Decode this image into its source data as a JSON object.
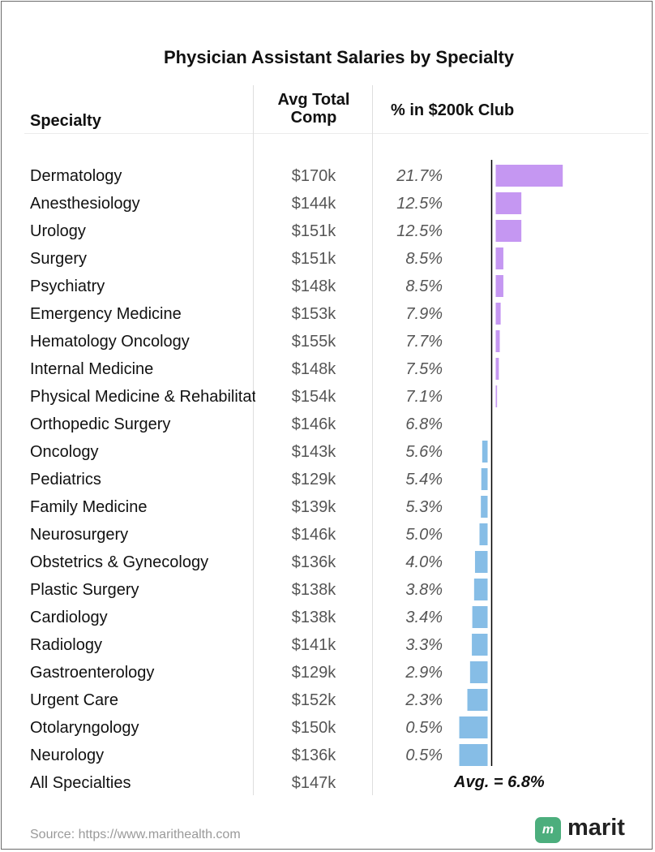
{
  "title": "Physician Assistant Salaries by Specialty",
  "headers": {
    "specialty": "Specialty",
    "comp_line1": "Avg Total",
    "comp_line2": "Comp",
    "pct": "% in $200k Club"
  },
  "rows": [
    {
      "specialty": "Dermatology",
      "comp": "$170k",
      "pct": "21.7%"
    },
    {
      "specialty": "Anesthesiology",
      "comp": "$144k",
      "pct": "12.5%"
    },
    {
      "specialty": "Urology",
      "comp": "$151k",
      "pct": "12.5%"
    },
    {
      "specialty": "Surgery",
      "comp": "$151k",
      "pct": "8.5%"
    },
    {
      "specialty": "Psychiatry",
      "comp": "$148k",
      "pct": "8.5%"
    },
    {
      "specialty": "Emergency Medicine",
      "comp": "$153k",
      "pct": "7.9%"
    },
    {
      "specialty": "Hematology Oncology",
      "comp": "$155k",
      "pct": "7.7%"
    },
    {
      "specialty": "Internal Medicine",
      "comp": "$148k",
      "pct": "7.5%"
    },
    {
      "specialty": "Physical Medicine & Rehabilitation",
      "comp": "$154k",
      "pct": "7.1%"
    },
    {
      "specialty": "Orthopedic Surgery",
      "comp": "$146k",
      "pct": "6.8%"
    },
    {
      "specialty": "Oncology",
      "comp": "$143k",
      "pct": "5.6%"
    },
    {
      "specialty": "Pediatrics",
      "comp": "$129k",
      "pct": "5.4%"
    },
    {
      "specialty": "Family Medicine",
      "comp": "$139k",
      "pct": "5.3%"
    },
    {
      "specialty": "Neurosurgery",
      "comp": "$146k",
      "pct": "5.0%"
    },
    {
      "specialty": "Obstetrics & Gynecology",
      "comp": "$136k",
      "pct": "4.0%"
    },
    {
      "specialty": "Plastic Surgery",
      "comp": "$138k",
      "pct": "3.8%"
    },
    {
      "specialty": "Cardiology",
      "comp": "$138k",
      "pct": "3.4%"
    },
    {
      "specialty": "Radiology",
      "comp": "$141k",
      "pct": "3.3%"
    },
    {
      "specialty": "Gastroenterology",
      "comp": "$129k",
      "pct": "2.9%"
    },
    {
      "specialty": "Urgent Care",
      "comp": "$152k",
      "pct": "2.3%"
    },
    {
      "specialty": "Otolaryngology",
      "comp": "$150k",
      "pct": "0.5%"
    },
    {
      "specialty": "Neurology",
      "comp": "$136k",
      "pct": "0.5%"
    }
  ],
  "total": {
    "specialty": "All Specialties",
    "comp": "$147k"
  },
  "avg_label": "Avg. = 6.8%",
  "source": "Source: https://www.marithealth.com",
  "logo": {
    "text": "marit",
    "mark": "m",
    "color": "#4cae7d"
  },
  "colors": {
    "above_avg": "#c597f2",
    "below_avg": "#86bde6",
    "avg_line": "#000000"
  },
  "chart_data": {
    "type": "bar",
    "title": "Physician Assistant Salaries by Specialty",
    "orientation": "horizontal diverging from average",
    "reference_value": 6.8,
    "categories": [
      "Dermatology",
      "Anesthesiology",
      "Urology",
      "Surgery",
      "Psychiatry",
      "Emergency Medicine",
      "Hematology Oncology",
      "Internal Medicine",
      "Physical Medicine & Rehabilitation",
      "Orthopedic Surgery",
      "Oncology",
      "Pediatrics",
      "Family Medicine",
      "Neurosurgery",
      "Obstetrics & Gynecology",
      "Plastic Surgery",
      "Cardiology",
      "Radiology",
      "Gastroenterology",
      "Urgent Care",
      "Otolaryngology",
      "Neurology"
    ],
    "values": [
      21.7,
      12.5,
      12.5,
      8.5,
      8.5,
      7.9,
      7.7,
      7.5,
      7.1,
      6.8,
      5.6,
      5.4,
      5.3,
      5.0,
      4.0,
      3.8,
      3.4,
      3.3,
      2.9,
      2.3,
      0.5,
      0.5
    ],
    "grid": false,
    "legend": "none"
  }
}
